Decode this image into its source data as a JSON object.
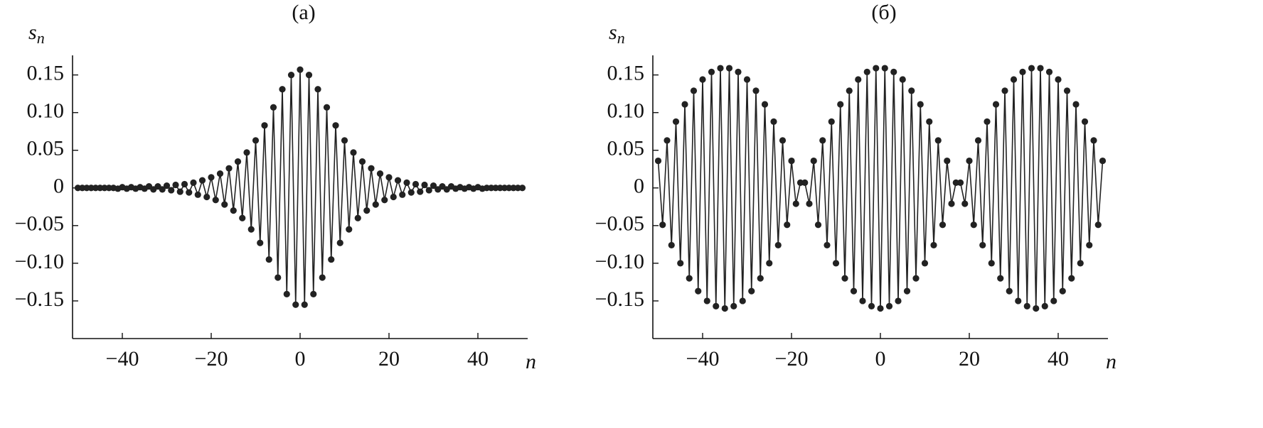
{
  "chart_data": [
    {
      "type": "line",
      "title": "(а)",
      "ylabel": "s",
      "ylabel_subscript": "n",
      "xlabel": "n",
      "color": "#222222",
      "markers": true,
      "x": [
        -50,
        -49,
        -48,
        -47,
        -46,
        -45,
        -44,
        -43,
        -42,
        -41,
        -40,
        -39,
        -38,
        -37,
        -36,
        -35,
        -34,
        -33,
        -32,
        -31,
        -30,
        -29,
        -28,
        -27,
        -26,
        -25,
        -24,
        -23,
        -22,
        -21,
        -20,
        -19,
        -18,
        -17,
        -16,
        -15,
        -14,
        -13,
        -12,
        -11,
        -10,
        -9,
        -8,
        -7,
        -6,
        -5,
        -4,
        -3,
        -2,
        -1,
        0,
        1,
        2,
        3,
        4,
        5,
        6,
        7,
        8,
        9,
        10,
        11,
        12,
        13,
        14,
        15,
        16,
        17,
        18,
        19,
        20,
        21,
        22,
        23,
        24,
        25,
        26,
        27,
        28,
        29,
        30,
        31,
        32,
        33,
        34,
        35,
        36,
        37,
        38,
        39,
        40,
        41,
        42,
        43,
        44,
        45,
        46,
        47,
        48,
        49,
        50
      ],
      "values": [
        0,
        0,
        0,
        0,
        0,
        0,
        0,
        0,
        0,
        -0.001,
        0.001,
        -0.001,
        0.001,
        -0.001,
        0.001,
        -0.001,
        0.002,
        -0.002,
        0.002,
        -0.002,
        0.003,
        -0.003,
        0.004,
        -0.005,
        0.005,
        -0.006,
        0.007,
        -0.009,
        0.01,
        -0.012,
        0.014,
        -0.016,
        0.019,
        -0.022,
        0.026,
        -0.03,
        0.035,
        -0.04,
        0.047,
        -0.055,
        0.063,
        -0.073,
        0.083,
        -0.095,
        0.107,
        -0.119,
        0.131,
        -0.141,
        0.15,
        -0.155,
        0.157,
        -0.155,
        0.15,
        -0.141,
        0.131,
        -0.119,
        0.107,
        -0.095,
        0.083,
        -0.073,
        0.063,
        -0.055,
        0.047,
        -0.04,
        0.035,
        -0.03,
        0.026,
        -0.022,
        0.019,
        -0.016,
        0.014,
        -0.012,
        0.01,
        -0.009,
        0.007,
        -0.006,
        0.005,
        -0.005,
        0.004,
        -0.003,
        0.003,
        -0.002,
        0.002,
        -0.002,
        0.002,
        -0.001,
        0.001,
        -0.001,
        0.001,
        -0.001,
        0.001,
        -0.001,
        0,
        0,
        0,
        0,
        0,
        0,
        0,
        0,
        0
      ],
      "xlim": [
        -51.2,
        51.2
      ],
      "xticks": [
        {
          "value": -40,
          "label": "−40"
        },
        {
          "value": -20,
          "label": "−20"
        },
        0,
        20,
        40
      ],
      "ylim": [
        -0.2,
        0.176
      ],
      "yticks": [
        0.15,
        {
          "value": 0.1,
          "label": "0.10"
        },
        0.05,
        0,
        {
          "value": -0.05,
          "label": "−0.05"
        },
        {
          "value": -0.1,
          "label": "−0.10"
        },
        {
          "value": -0.15,
          "label": "−0.15"
        }
      ]
    },
    {
      "type": "line",
      "title": "(б)",
      "ylabel": "s",
      "ylabel_subscript": "n",
      "xlabel": "n",
      "color": "#222222",
      "markers": true,
      "x": [
        -50,
        -49,
        -48,
        -47,
        -46,
        -45,
        -44,
        -43,
        -42,
        -41,
        -40,
        -39,
        -38,
        -37,
        -36,
        -35,
        -34,
        -33,
        -32,
        -31,
        -30,
        -29,
        -28,
        -27,
        -26,
        -25,
        -24,
        -23,
        -22,
        -21,
        -20,
        -19,
        -18,
        -17,
        -16,
        -15,
        -14,
        -13,
        -12,
        -11,
        -10,
        -9,
        -8,
        -7,
        -6,
        -5,
        -4,
        -3,
        -2,
        -1,
        0,
        1,
        2,
        3,
        4,
        5,
        6,
        7,
        8,
        9,
        10,
        11,
        12,
        13,
        14,
        15,
        16,
        17,
        18,
        19,
        20,
        21,
        22,
        23,
        24,
        25,
        26,
        27,
        28,
        29,
        30,
        31,
        32,
        33,
        34,
        35,
        36,
        37,
        38,
        39,
        40,
        41,
        42,
        43,
        44,
        45,
        46,
        47,
        48,
        49,
        50
      ],
      "values": [
        0.036,
        -0.049,
        0.063,
        -0.076,
        0.088,
        -0.1,
        0.111,
        -0.12,
        0.129,
        -0.137,
        0.144,
        -0.15,
        0.154,
        -0.157,
        0.159,
        -0.16,
        0.159,
        -0.157,
        0.154,
        -0.15,
        0.144,
        -0.137,
        0.129,
        -0.12,
        0.111,
        -0.1,
        0.088,
        -0.076,
        0.063,
        -0.049,
        0.036,
        -0.021,
        0.007,
        0.007,
        -0.021,
        0.036,
        -0.049,
        0.063,
        -0.076,
        0.088,
        -0.1,
        0.111,
        -0.12,
        0.129,
        -0.137,
        0.144,
        -0.15,
        0.154,
        -0.157,
        0.159,
        -0.16,
        0.159,
        -0.157,
        0.154,
        -0.15,
        0.144,
        -0.137,
        0.129,
        -0.12,
        0.111,
        -0.1,
        0.088,
        -0.076,
        0.063,
        -0.049,
        0.036,
        -0.021,
        0.007,
        0.007,
        -0.021,
        0.036,
        -0.049,
        0.063,
        -0.076,
        0.088,
        -0.1,
        0.111,
        -0.12,
        0.129,
        -0.137,
        0.144,
        -0.15,
        0.154,
        -0.157,
        0.159,
        -0.16,
        0.159,
        -0.157,
        0.154,
        -0.15,
        0.144,
        -0.137,
        0.129,
        -0.12,
        0.111,
        -0.1,
        0.088,
        -0.076,
        0.063,
        -0.049,
        0.036
      ],
      "xlim": [
        -51.2,
        51.2
      ],
      "xticks": [
        {
          "value": -40,
          "label": "−40"
        },
        {
          "value": -20,
          "label": "−20"
        },
        0,
        20,
        40
      ],
      "ylim": [
        -0.2,
        0.176
      ],
      "yticks": [
        0.15,
        {
          "value": 0.1,
          "label": "0.10"
        },
        0.05,
        0,
        {
          "value": -0.05,
          "label": "−0.05"
        },
        {
          "value": -0.1,
          "label": "−0.10"
        },
        {
          "value": -0.15,
          "label": "−0.15"
        }
      ]
    }
  ]
}
